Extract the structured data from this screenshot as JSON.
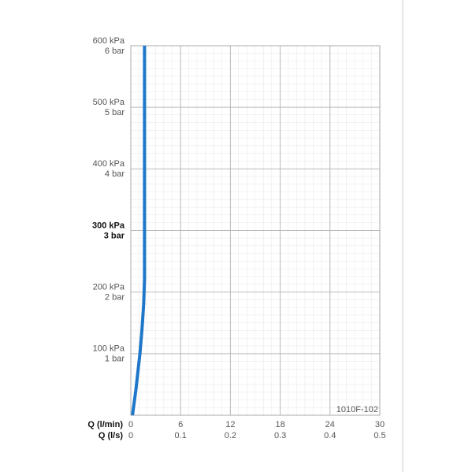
{
  "chart_data": {
    "type": "line",
    "x_label": "Q (l/min)",
    "x2_label": "Q (l/s)",
    "annotation": "1010F-102",
    "xlim": [
      0,
      30
    ],
    "xticks": [
      0,
      6,
      12,
      18,
      24,
      30
    ],
    "x2lim": [
      0,
      0.5
    ],
    "x2ticks": [
      0,
      0.1,
      0.2,
      0.3,
      0.4,
      0.5
    ],
    "ylim": [
      0,
      600
    ],
    "yticks": [
      {
        "value": 100,
        "label": "100 kPa"
      },
      {
        "value": 200,
        "label": "200 kPa"
      },
      {
        "value": 300,
        "label": "300 kPa"
      },
      {
        "value": 400,
        "label": "400 kPa"
      },
      {
        "value": 500,
        "label": "500 kPa"
      },
      {
        "value": 600,
        "label": "600 kPa"
      }
    ],
    "y2lim": [
      0,
      6
    ],
    "y2ticks": [
      {
        "value": 1,
        "label": "1 bar"
      },
      {
        "value": 2,
        "label": "2 bar"
      },
      {
        "value": 3,
        "label": "3 bar"
      },
      {
        "value": 4,
        "label": "4 bar"
      },
      {
        "value": 5,
        "label": "5 bar"
      },
      {
        "value": 6,
        "label": "6 bar"
      }
    ],
    "bold_ytick": 300,
    "grid": true,
    "series": [
      {
        "color": "#1f77c9",
        "x": [
          0.2,
          0.4,
          0.6,
          0.85,
          1.1,
          1.35,
          1.55,
          1.65,
          1.65
        ],
        "values": [
          0,
          20,
          40,
          70,
          100,
          140,
          180,
          220,
          600
        ]
      }
    ]
  }
}
